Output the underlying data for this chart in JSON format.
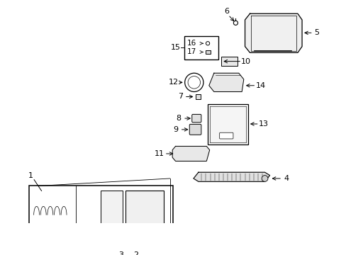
{
  "background_color": "#ffffff",
  "fig_w": 4.89,
  "fig_h": 3.6,
  "dpi": 100
}
